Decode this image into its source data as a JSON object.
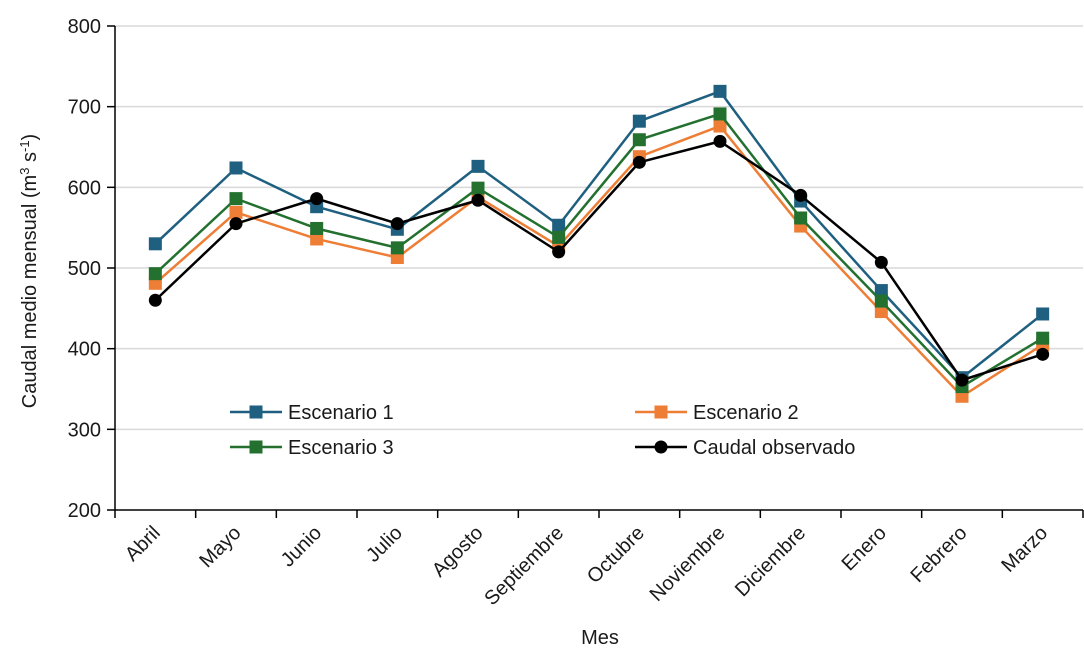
{
  "chart_data": {
    "type": "line",
    "xlabel": "Mes",
    "ylabel": "Caudal medio mensual (m³ s⁻¹)",
    "ylabel_parts": {
      "main": "Caudal medio mensual (m",
      "sup1": "3",
      "mid": " s",
      "sup2": "-1",
      "end": ")"
    },
    "ylim": [
      200,
      800
    ],
    "yticks": [
      200,
      300,
      400,
      500,
      600,
      700,
      800
    ],
    "grid": "horizontal",
    "legend_placement": "inside-lower",
    "categories": [
      "Abril",
      "Mayo",
      "Junio",
      "Julio",
      "Agosto",
      "Septiembre",
      "Octubre",
      "Noviembre",
      "Diciembre",
      "Enero",
      "Febrero",
      "Marzo"
    ],
    "series": [
      {
        "name": "Escenario 1",
        "color": "#1f5f7f",
        "marker": "square",
        "values": [
          530,
          624,
          576,
          548,
          626,
          553,
          682,
          719,
          583,
          472,
          364,
          443
        ]
      },
      {
        "name": "Escenario 2",
        "color": "#ee7d35",
        "marker": "square",
        "values": [
          481,
          569,
          536,
          513,
          588,
          527,
          638,
          676,
          552,
          446,
          341,
          405
        ]
      },
      {
        "name": "Escenario 3",
        "color": "#23702f",
        "marker": "square",
        "values": [
          493,
          586,
          549,
          525,
          599,
          538,
          659,
          691,
          562,
          459,
          353,
          413
        ]
      },
      {
        "name": "Caudal observado",
        "color": "#000000",
        "marker": "circle",
        "values": [
          460,
          555,
          586,
          555,
          584,
          520,
          631,
          657,
          590,
          507,
          361,
          393
        ]
      }
    ]
  }
}
